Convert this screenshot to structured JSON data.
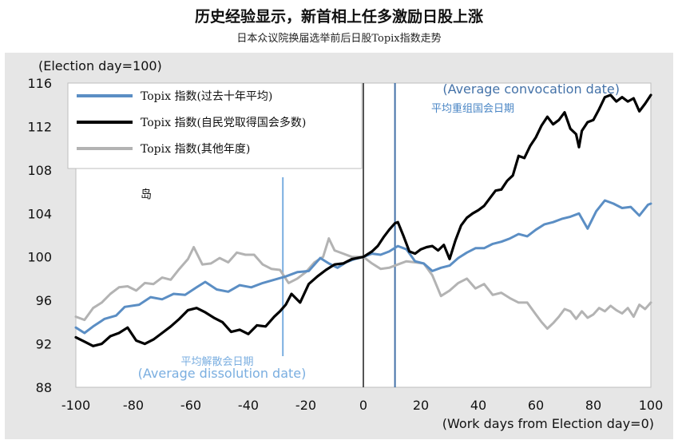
{
  "title": "历史经验显示，新首相上任多激励日股上涨",
  "subtitle": "日本众议院换届选举前后日股Topix指数走势",
  "chart_data": {
    "type": "line",
    "ylabel": "(Election day=100)",
    "xlabel": "(Work days from Election day=0)",
    "xlim": [
      -100,
      100
    ],
    "ylim": [
      88,
      116
    ],
    "x_ticks": [
      -100,
      -80,
      -60,
      -40,
      -20,
      0,
      20,
      40,
      60,
      80,
      100
    ],
    "y_ticks": [
      88,
      92,
      96,
      100,
      104,
      108,
      112,
      116
    ],
    "grid": false,
    "legend_position": "top-left",
    "colors": {
      "avg": "#5b8ec4",
      "ldp": "#000000",
      "other": "#b3b3b3",
      "vline_left": "#7aaee0",
      "vline_right": "#4472a8",
      "panel": "#e6e6e6"
    },
    "series": [
      {
        "name": "Topix 指数(过去十年平均)",
        "color": "#5b8ec4",
        "points": [
          [
            -100,
            93.5
          ],
          [
            -97,
            93.0
          ],
          [
            -94,
            93.6
          ],
          [
            -90,
            94.3
          ],
          [
            -86,
            94.6
          ],
          [
            -83,
            95.4
          ],
          [
            -78,
            95.6
          ],
          [
            -74,
            96.3
          ],
          [
            -70,
            96.1
          ],
          [
            -66,
            96.6
          ],
          [
            -62,
            96.5
          ],
          [
            -58,
            97.2
          ],
          [
            -55,
            97.7
          ],
          [
            -51,
            97.0
          ],
          [
            -47,
            96.8
          ],
          [
            -43,
            97.4
          ],
          [
            -39,
            97.2
          ],
          [
            -35,
            97.6
          ],
          [
            -31,
            97.9
          ],
          [
            -27,
            98.2
          ],
          [
            -23,
            98.6
          ],
          [
            -19,
            98.7
          ],
          [
            -15,
            99.9
          ],
          [
            -12,
            99.4
          ],
          [
            -9,
            99.0
          ],
          [
            -6,
            99.5
          ],
          [
            -3,
            99.8
          ],
          [
            0,
            100.0
          ],
          [
            3,
            100.3
          ],
          [
            6,
            100.2
          ],
          [
            9,
            100.5
          ],
          [
            12,
            101.0
          ],
          [
            15,
            100.7
          ],
          [
            18,
            99.6
          ],
          [
            21,
            99.4
          ],
          [
            24,
            98.7
          ],
          [
            27,
            99.0
          ],
          [
            30,
            99.2
          ],
          [
            33,
            99.9
          ],
          [
            36,
            100.4
          ],
          [
            39,
            100.8
          ],
          [
            42,
            100.8
          ],
          [
            45,
            101.2
          ],
          [
            48,
            101.4
          ],
          [
            51,
            101.7
          ],
          [
            54,
            102.1
          ],
          [
            57,
            101.9
          ],
          [
            60,
            102.5
          ],
          [
            63,
            103.0
          ],
          [
            66,
            103.2
          ],
          [
            69,
            103.5
          ],
          [
            72,
            103.7
          ],
          [
            75,
            104.0
          ],
          [
            78,
            102.6
          ],
          [
            81,
            104.2
          ],
          [
            84,
            105.2
          ],
          [
            87,
            104.9
          ],
          [
            90,
            104.5
          ],
          [
            93,
            104.6
          ],
          [
            96,
            103.8
          ],
          [
            99,
            104.8
          ],
          [
            100,
            104.9
          ]
        ]
      },
      {
        "name": "Topix 指数(自民党取得国会多数)",
        "color": "#000000",
        "points": [
          [
            -100,
            92.6
          ],
          [
            -97,
            92.2
          ],
          [
            -94,
            91.8
          ],
          [
            -91,
            92.0
          ],
          [
            -88,
            92.7
          ],
          [
            -85,
            93.0
          ],
          [
            -82,
            93.5
          ],
          [
            -79,
            92.3
          ],
          [
            -76,
            92.0
          ],
          [
            -73,
            92.4
          ],
          [
            -70,
            93.0
          ],
          [
            -67,
            93.6
          ],
          [
            -64,
            94.3
          ],
          [
            -61,
            95.1
          ],
          [
            -58,
            95.3
          ],
          [
            -55,
            94.9
          ],
          [
            -52,
            94.4
          ],
          [
            -49,
            94.0
          ],
          [
            -46,
            93.1
          ],
          [
            -43,
            93.3
          ],
          [
            -40,
            92.9
          ],
          [
            -37,
            93.7
          ],
          [
            -34,
            93.6
          ],
          [
            -31,
            94.5
          ],
          [
            -29,
            95.0
          ],
          [
            -27,
            95.6
          ],
          [
            -25,
            96.6
          ],
          [
            -22,
            95.8
          ],
          [
            -19,
            97.5
          ],
          [
            -16,
            98.2
          ],
          [
            -13,
            98.8
          ],
          [
            -10,
            99.3
          ],
          [
            -7,
            99.4
          ],
          [
            -4,
            99.8
          ],
          [
            -2,
            99.9
          ],
          [
            0,
            100.0
          ],
          [
            3,
            100.5
          ],
          [
            5,
            101.0
          ],
          [
            7,
            101.8
          ],
          [
            9,
            102.5
          ],
          [
            11,
            103.1
          ],
          [
            12,
            103.2
          ],
          [
            14,
            101.9
          ],
          [
            16,
            100.5
          ],
          [
            18,
            100.3
          ],
          [
            20,
            100.7
          ],
          [
            22,
            100.9
          ],
          [
            24,
            101.0
          ],
          [
            26,
            100.6
          ],
          [
            28,
            101.1
          ],
          [
            30,
            99.8
          ],
          [
            32,
            101.5
          ],
          [
            34,
            102.9
          ],
          [
            36,
            103.6
          ],
          [
            38,
            104.0
          ],
          [
            40,
            104.3
          ],
          [
            42,
            104.7
          ],
          [
            44,
            105.4
          ],
          [
            46,
            106.1
          ],
          [
            48,
            106.2
          ],
          [
            50,
            107.0
          ],
          [
            52,
            107.5
          ],
          [
            54,
            109.3
          ],
          [
            56,
            109.1
          ],
          [
            58,
            110.2
          ],
          [
            60,
            111.0
          ],
          [
            62,
            112.1
          ],
          [
            64,
            112.9
          ],
          [
            66,
            112.2
          ],
          [
            68,
            112.6
          ],
          [
            70,
            113.3
          ],
          [
            72,
            111.8
          ],
          [
            74,
            111.3
          ],
          [
            75,
            110.1
          ],
          [
            76,
            111.6
          ],
          [
            78,
            112.4
          ],
          [
            80,
            112.6
          ],
          [
            82,
            113.6
          ],
          [
            84,
            114.7
          ],
          [
            86,
            114.9
          ],
          [
            88,
            114.3
          ],
          [
            90,
            114.7
          ],
          [
            92,
            114.3
          ],
          [
            94,
            114.6
          ],
          [
            96,
            113.4
          ],
          [
            98,
            114.1
          ],
          [
            100,
            114.9
          ]
        ]
      },
      {
        "name": "Topix 指数(其他年度)",
        "color": "#b3b3b3",
        "points": [
          [
            -100,
            94.5
          ],
          [
            -97,
            94.2
          ],
          [
            -94,
            95.3
          ],
          [
            -91,
            95.8
          ],
          [
            -88,
            96.6
          ],
          [
            -85,
            97.2
          ],
          [
            -82,
            97.3
          ],
          [
            -79,
            96.9
          ],
          [
            -76,
            97.6
          ],
          [
            -73,
            97.5
          ],
          [
            -70,
            98.1
          ],
          [
            -67,
            97.9
          ],
          [
            -64,
            98.9
          ],
          [
            -61,
            99.8
          ],
          [
            -59,
            100.9
          ],
          [
            -56,
            99.3
          ],
          [
            -53,
            99.4
          ],
          [
            -50,
            99.9
          ],
          [
            -47,
            99.5
          ],
          [
            -44,
            100.4
          ],
          [
            -41,
            100.2
          ],
          [
            -38,
            100.2
          ],
          [
            -35,
            99.3
          ],
          [
            -32,
            98.9
          ],
          [
            -29,
            98.8
          ],
          [
            -26,
            97.6
          ],
          [
            -23,
            98.0
          ],
          [
            -20,
            98.6
          ],
          [
            -17,
            99.5
          ],
          [
            -14,
            100.0
          ],
          [
            -12,
            101.7
          ],
          [
            -10,
            100.6
          ],
          [
            -7,
            100.3
          ],
          [
            -4,
            100.0
          ],
          [
            0,
            100.0
          ],
          [
            3,
            99.4
          ],
          [
            6,
            98.9
          ],
          [
            9,
            99.0
          ],
          [
            12,
            99.3
          ],
          [
            15,
            99.6
          ],
          [
            18,
            99.5
          ],
          [
            21,
            99.4
          ],
          [
            24,
            98.3
          ],
          [
            27,
            96.4
          ],
          [
            30,
            96.9
          ],
          [
            33,
            97.6
          ],
          [
            36,
            98.0
          ],
          [
            39,
            97.1
          ],
          [
            42,
            97.5
          ],
          [
            45,
            96.5
          ],
          [
            48,
            96.7
          ],
          [
            51,
            96.2
          ],
          [
            54,
            95.8
          ],
          [
            57,
            95.8
          ],
          [
            60,
            94.7
          ],
          [
            62,
            94.0
          ],
          [
            64,
            93.4
          ],
          [
            66,
            93.9
          ],
          [
            68,
            94.5
          ],
          [
            70,
            95.2
          ],
          [
            72,
            95.0
          ],
          [
            74,
            94.3
          ],
          [
            76,
            95.0
          ],
          [
            78,
            94.4
          ],
          [
            80,
            94.7
          ],
          [
            82,
            95.3
          ],
          [
            84,
            95.0
          ],
          [
            86,
            95.5
          ],
          [
            88,
            95.1
          ],
          [
            90,
            94.8
          ],
          [
            92,
            95.3
          ],
          [
            94,
            94.5
          ],
          [
            96,
            95.6
          ],
          [
            98,
            95.2
          ],
          [
            100,
            95.8
          ]
        ]
      }
    ],
    "vlines": [
      {
        "x": -28,
        "label_cn": "平均解散会日期",
        "label_en": "(Average dissolution date)"
      },
      {
        "x": 11,
        "label_cn": "平均重组国会日期",
        "label_en": "(Average convocation date)"
      }
    ],
    "annotation": "岛"
  }
}
